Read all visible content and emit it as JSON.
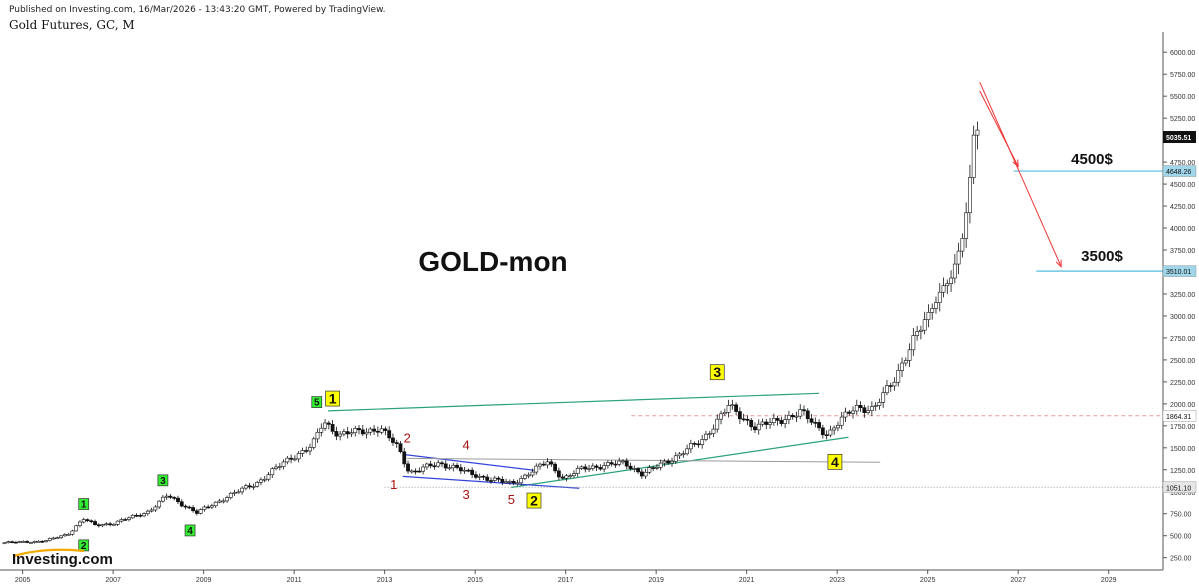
{
  "header": {
    "published": "Published on Investing.com, 16/Mar/2026 - 13:43:20 GMT, Powered by TradingView.",
    "symbol": "Gold Futures, GC, M"
  },
  "watermark": "Investing.com",
  "colors": {
    "up": "#ffffff",
    "down": "#111111",
    "trendline": "#2aa37a",
    "channel": "#3344dd",
    "wave_text": "#aa1111",
    "forecast_arrow": "#ee3333",
    "target_line": "#55bbdd",
    "badge_green": "#33ee33",
    "badge_yellow": "#ffff00"
  },
  "chart_data": {
    "type": "candlestick",
    "title": "GOLD-mon",
    "interval": "monthly",
    "xlim": [
      2004.5,
      2030.2
    ],
    "ylim": [
      110,
      6230
    ],
    "x_ticks": [
      "2005",
      "2007",
      "2009",
      "2011",
      "2013",
      "2015",
      "2017",
      "2019",
      "2021",
      "2023",
      "2025",
      "2027",
      "2029"
    ],
    "y_ticks": [
      "250.00",
      "500.00",
      "750.00",
      "1000.00",
      "1250.00",
      "1500.00",
      "1750.00",
      "2000.00",
      "2250.00",
      "2500.00",
      "2750.00",
      "3000.00",
      "3250.00",
      "3500.00",
      "3750.00",
      "4000.00",
      "4250.00",
      "4500.00",
      "4750.00",
      "5000.00",
      "5250.00",
      "5500.00",
      "5750.00",
      "6000.00"
    ],
    "price_anchors": [
      [
        2004.6,
        420
      ],
      [
        2005.5,
        440
      ],
      [
        2006.0,
        520
      ],
      [
        2006.35,
        690
      ],
      [
        2006.6,
        620
      ],
      [
        2007.0,
        640
      ],
      [
        2007.8,
        780
      ],
      [
        2008.2,
        960
      ],
      [
        2008.85,
        760
      ],
      [
        2009.5,
        940
      ],
      [
        2010.2,
        1110
      ],
      [
        2010.9,
        1380
      ],
      [
        2011.4,
        1520
      ],
      [
        2011.65,
        1800
      ],
      [
        2012.0,
        1650
      ],
      [
        2012.9,
        1720
      ],
      [
        2013.3,
        1500
      ],
      [
        2013.55,
        1220
      ],
      [
        2014.2,
        1320
      ],
      [
        2014.5,
        1290
      ],
      [
        2014.9,
        1200
      ],
      [
        2015.8,
        1090
      ],
      [
        2016.6,
        1340
      ],
      [
        2016.95,
        1150
      ],
      [
        2017.4,
        1270
      ],
      [
        2018.3,
        1330
      ],
      [
        2018.7,
        1200
      ],
      [
        2019.5,
        1420
      ],
      [
        2020.0,
        1580
      ],
      [
        2020.6,
        1970
      ],
      [
        2021.2,
        1730
      ],
      [
        2022.2,
        1900
      ],
      [
        2022.8,
        1650
      ],
      [
        2023.4,
        1980
      ],
      [
        2023.8,
        1920
      ],
      [
        2024.3,
        2330
      ],
      [
        2025.3,
        3300
      ],
      [
        2025.55,
        3450
      ],
      [
        2025.75,
        3850
      ],
      [
        2025.9,
        4350
      ],
      [
        2026.05,
        5300
      ],
      [
        2026.15,
        5035
      ]
    ],
    "last_price": "5035.51",
    "price_labels": [
      {
        "label": "4648.26",
        "value": 4648.26
      },
      {
        "label": "3510.01",
        "value": 3510.01
      },
      {
        "label": "1864.31",
        "value": 1864.31
      },
      {
        "label": "1051.10",
        "value": 1051.1
      }
    ],
    "targets": [
      {
        "label": "4500$",
        "value": 4648.26
      },
      {
        "label": "3500$",
        "value": 3510.01
      }
    ],
    "wave_badges": [
      {
        "label": "1",
        "x": 2006.35,
        "y": 860,
        "color": "green"
      },
      {
        "label": "2",
        "x": 2006.35,
        "y": 390,
        "color": "green"
      },
      {
        "label": "3",
        "x": 2008.1,
        "y": 1130,
        "color": "green"
      },
      {
        "label": "4",
        "x": 2008.7,
        "y": 560,
        "color": "green"
      },
      {
        "label": "5",
        "x": 2011.5,
        "y": 2020,
        "color": "green"
      },
      {
        "label": "1",
        "x": 2011.85,
        "y": 2060,
        "color": "yellow"
      },
      {
        "label": "2",
        "x": 2016.3,
        "y": 900,
        "color": "yellow"
      },
      {
        "label": "3",
        "x": 2020.35,
        "y": 2360,
        "color": "yellow"
      },
      {
        "label": "4",
        "x": 2022.95,
        "y": 1340,
        "color": "yellow"
      }
    ],
    "wave_numbers": [
      {
        "label": "1",
        "x": 2013.2,
        "y": 1030
      },
      {
        "label": "2",
        "x": 2013.5,
        "y": 1560
      },
      {
        "label": "3",
        "x": 2014.8,
        "y": 920
      },
      {
        "label": "4",
        "x": 2014.8,
        "y": 1480
      },
      {
        "label": "5",
        "x": 2015.8,
        "y": 860
      }
    ],
    "trendlines": [
      {
        "name": "upper-trendline",
        "x1": 2011.75,
        "y1": 1920,
        "x2": 2022.6,
        "y2": 2120
      },
      {
        "name": "lower-trendline",
        "x1": 2015.8,
        "y1": 1050,
        "x2": 2023.25,
        "y2": 1620
      }
    ],
    "channel_lines": [
      {
        "name": "channel-top",
        "x1": 2013.4,
        "y1": 1425,
        "x2": 2016.3,
        "y2": 1245
      },
      {
        "name": "channel-bottom",
        "x1": 2013.4,
        "y1": 1175,
        "x2": 2017.3,
        "y2": 1040
      }
    ],
    "support_line": {
      "x1": 2013.5,
      "y1": 1380,
      "x2": 2023.95,
      "y2": 1335
    },
    "forecast_arrows": [
      {
        "name": "arrow-to-4500",
        "x1": 2026.15,
        "y1": 5560,
        "x2": 2027.0,
        "y2": 4700
      },
      {
        "name": "arrow-to-3500",
        "x1": 2026.15,
        "y1": 5660,
        "x2": 2027.95,
        "y2": 3560
      }
    ],
    "target_lines": [
      {
        "name": "target-line-4500",
        "x1": 2026.9,
        "y": 4648.26
      },
      {
        "name": "target-line-3500",
        "x1": 2027.4,
        "y": 3510.01
      }
    ],
    "ref_lines": [
      {
        "name": "ref-line-1864",
        "x1": 2018.45,
        "y": 1864.31,
        "style": "dashed-red"
      },
      {
        "name": "ref-line-1051",
        "x1": 2013.0,
        "y": 1051.1,
        "style": "dotted-gray"
      }
    ]
  }
}
